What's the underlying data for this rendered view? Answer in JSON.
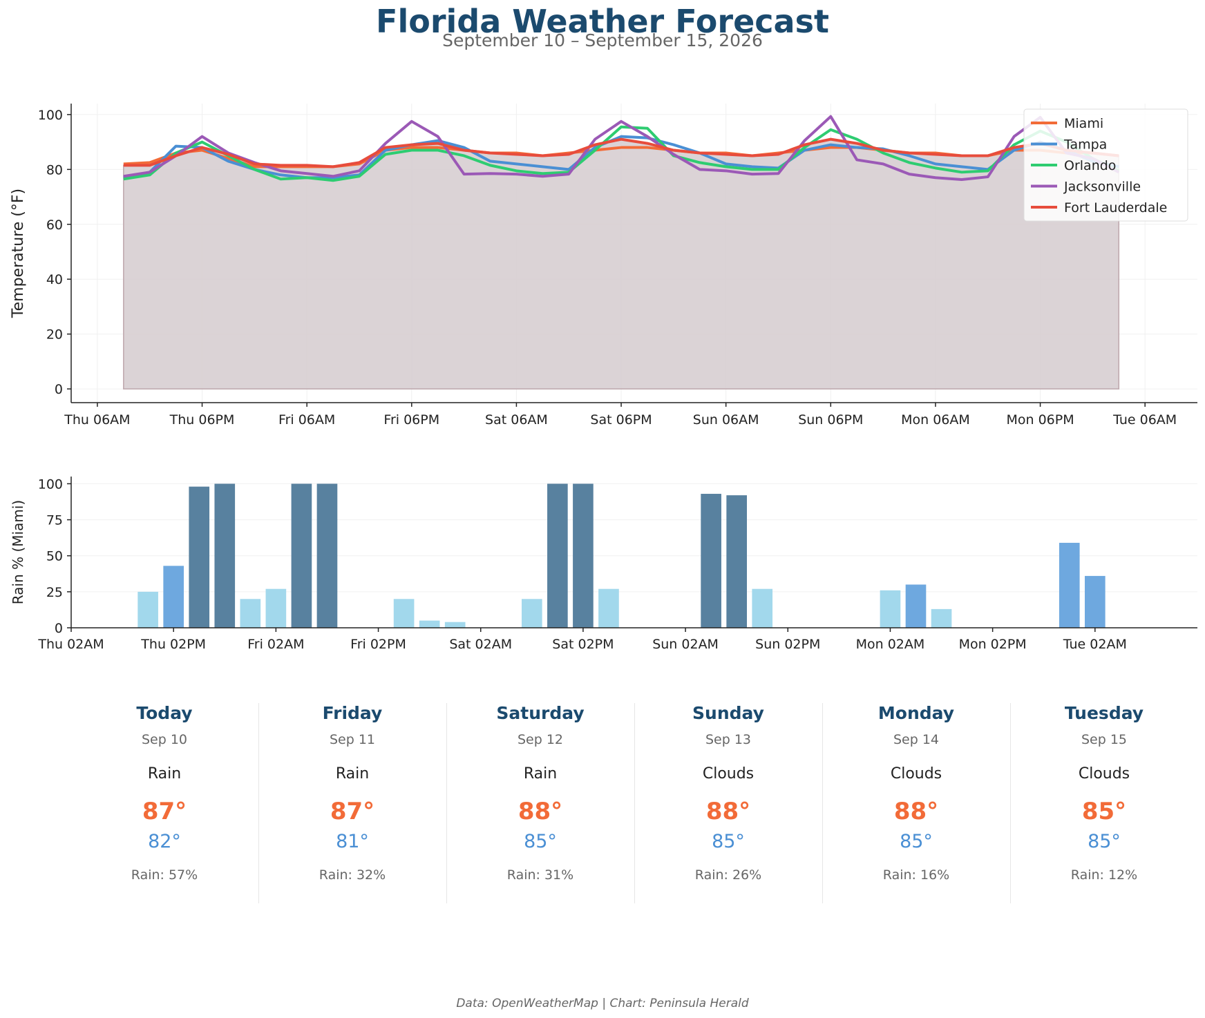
{
  "header": {
    "title": "Florida Weather Forecast",
    "subtitle": "September 10 – September 15, 2026"
  },
  "colors": {
    "title": "#1b4a6e",
    "Miami": "#f26b38",
    "Tampa": "#4a8fd4",
    "Orlando": "#2ecc71",
    "Jacksonville": "#9b59b6",
    "Fort Lauderdale": "#e74c3c",
    "rain_high": "#58819f",
    "rain_mid": "#6ea8df",
    "rain_low": "#a2d8ec",
    "fill": "#d8cfd2"
  },
  "chart_data": [
    {
      "type": "line",
      "x_unit": "hours from Thu 06AM",
      "x": [
        3,
        6,
        9,
        12,
        15,
        18,
        21,
        24,
        27,
        30,
        33,
        36,
        39,
        42,
        45,
        48,
        51,
        54,
        57,
        60,
        63,
        66,
        69,
        72,
        75,
        78,
        81,
        84,
        87,
        90,
        93,
        96,
        99,
        102,
        105,
        108,
        111,
        114,
        117
      ],
      "xticks": [
        "Thu 06AM",
        "Thu 06PM",
        "Fri 06AM",
        "Fri 06PM",
        "Sat 06AM",
        "Sat 06PM",
        "Sun 06AM",
        "Sun 06PM",
        "Mon 06AM",
        "Mon 06PM",
        "Tue 06AM"
      ],
      "xlim": [
        -3,
        126
      ],
      "ylim": [
        -5,
        104
      ],
      "yticks": [
        0,
        20,
        40,
        60,
        80,
        100
      ],
      "ylabel": "Temperature (°F)",
      "grid": true,
      "legend": "top-right",
      "area_fill_series": "Fort Lauderdale",
      "series": [
        {
          "name": "Miami",
          "values": [
            82,
            82.5,
            86,
            87,
            84,
            81,
            81,
            81,
            81,
            82,
            87,
            88,
            88,
            87,
            86,
            86,
            85,
            86,
            87,
            88,
            88,
            87,
            86,
            86,
            85,
            86,
            87,
            88,
            88,
            87,
            86,
            86,
            85,
            85,
            87,
            87,
            86,
            86,
            85
          ]
        },
        {
          "name": "Tampa",
          "values": [
            77,
            79,
            88.5,
            88,
            83,
            80,
            78,
            77,
            77,
            78,
            87,
            89,
            90.5,
            88,
            83,
            82,
            81,
            80,
            88,
            92,
            91.5,
            89,
            86,
            82,
            81,
            80.5,
            87,
            89,
            88,
            87.5,
            85,
            82,
            81,
            80,
            87,
            90,
            87,
            83,
            81
          ]
        },
        {
          "name": "Orlando",
          "values": [
            76.5,
            78,
            86,
            90,
            85,
            80,
            76.5,
            77,
            76,
            77.5,
            85.5,
            87,
            87,
            85,
            81.5,
            79.5,
            78.5,
            79,
            87,
            95.5,
            95,
            85,
            82.5,
            81,
            80,
            80,
            88,
            94.5,
            91,
            86,
            82.5,
            80.5,
            79,
            79.5,
            89,
            94,
            90,
            84,
            79.5
          ]
        },
        {
          "name": "Jacksonville",
          "values": [
            77.5,
            79,
            85,
            92,
            86,
            82.5,
            79.5,
            78.5,
            77.5,
            79.5,
            89.5,
            97.5,
            92,
            78.3,
            78.5,
            78.3,
            77.5,
            78.3,
            91,
            97.5,
            92,
            85.5,
            80,
            79.5,
            78.3,
            78.5,
            90.5,
            99.3,
            83.5,
            82,
            78.3,
            77,
            76.3,
            77.3,
            92,
            99,
            86,
            84,
            79
          ]
        },
        {
          "name": "Fort Lauderdale",
          "values": [
            81.5,
            81.5,
            85,
            88,
            85.5,
            82,
            81.5,
            81.5,
            81,
            82.5,
            88,
            89,
            89.5,
            87,
            86,
            85.5,
            85,
            85.5,
            89,
            91,
            89.5,
            87,
            86,
            85.5,
            85,
            85.5,
            89,
            91,
            89.5,
            87,
            86,
            85.5,
            85,
            85,
            88,
            89.5,
            87,
            86,
            85
          ]
        }
      ]
    },
    {
      "type": "bar",
      "x_unit": "hours from Thu 02AM",
      "x": [
        9,
        12,
        15,
        18,
        21,
        24,
        27,
        30,
        33,
        36,
        39,
        42,
        45,
        48,
        51,
        54,
        57,
        60,
        63,
        66,
        69,
        72,
        75,
        78,
        81,
        84,
        87,
        90,
        93,
        96,
        99,
        102,
        105,
        108,
        111,
        114,
        117,
        120,
        123
      ],
      "values": [
        25,
        43,
        98,
        100,
        20,
        27,
        100,
        100,
        0,
        0,
        20,
        5,
        4,
        0,
        0,
        20,
        100,
        100,
        27,
        0,
        0,
        0,
        93,
        92,
        27,
        0,
        0,
        0,
        0,
        26,
        30,
        13,
        0,
        0,
        0,
        0,
        59,
        36,
        0
      ],
      "xticks": [
        "Thu 02AM",
        "Thu 02PM",
        "Fri 02AM",
        "Fri 02PM",
        "Sat 02AM",
        "Sat 02PM",
        "Sun 02AM",
        "Sun 02PM",
        "Mon 02AM",
        "Mon 02PM",
        "Tue 02AM"
      ],
      "xlim": [
        0,
        132
      ],
      "ylim": [
        0,
        105
      ],
      "yticks": [
        0,
        25,
        50,
        75,
        100
      ],
      "ylabel": "Rain % (Miami)",
      "grid": true
    }
  ],
  "days": [
    {
      "name": "Today",
      "date": "Sep 10",
      "condition": "Rain",
      "high": "87°",
      "low": "82°",
      "rain": "Rain: 57%"
    },
    {
      "name": "Friday",
      "date": "Sep 11",
      "condition": "Rain",
      "high": "87°",
      "low": "81°",
      "rain": "Rain: 32%"
    },
    {
      "name": "Saturday",
      "date": "Sep 12",
      "condition": "Rain",
      "high": "88°",
      "low": "85°",
      "rain": "Rain: 31%"
    },
    {
      "name": "Sunday",
      "date": "Sep 13",
      "condition": "Clouds",
      "high": "88°",
      "low": "85°",
      "rain": "Rain: 26%"
    },
    {
      "name": "Monday",
      "date": "Sep 14",
      "condition": "Clouds",
      "high": "88°",
      "low": "85°",
      "rain": "Rain: 16%"
    },
    {
      "name": "Tuesday",
      "date": "Sep 15",
      "condition": "Clouds",
      "high": "85°",
      "low": "85°",
      "rain": "Rain: 12%"
    }
  ],
  "footer": "Data: OpenWeatherMap | Chart: Peninsula Herald"
}
